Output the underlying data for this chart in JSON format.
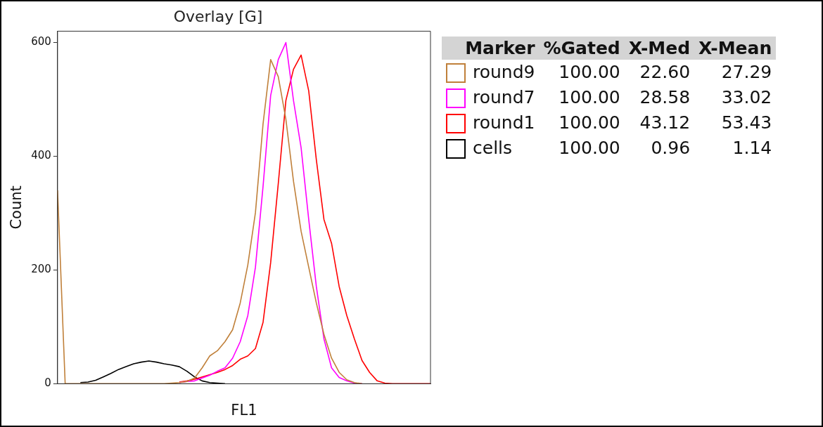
{
  "chart_data": {
    "type": "line",
    "title": "Overlay [G]",
    "xlabel": "FL1",
    "ylabel": "Count",
    "categories": [
      null,
      null,
      null,
      null,
      null,
      null,
      null,
      null,
      null,
      null,
      null,
      null,
      null,
      null,
      null,
      null,
      null,
      null,
      null,
      null,
      null,
      null,
      null,
      null,
      null,
      null,
      null,
      null,
      null,
      null,
      null,
      null,
      null,
      null,
      null,
      null,
      null,
      null,
      null,
      null,
      null,
      null,
      null,
      null,
      null,
      null,
      null,
      null,
      null,
      null
    ],
    "series": [
      {
        "name": "round9",
        "color": "#c0803a",
        "values": [
          340,
          0,
          0,
          0,
          0,
          0,
          0,
          0,
          0,
          0,
          0,
          0,
          0,
          0,
          0,
          1,
          2,
          4,
          10,
          28,
          49,
          58,
          74,
          95,
          142,
          209,
          301,
          457,
          570,
          540,
          465,
          356,
          268,
          205,
          142,
          87,
          45,
          20,
          7,
          2,
          0,
          null,
          null,
          null,
          null,
          null,
          null,
          null,
          null,
          null
        ]
      },
      {
        "name": "round7",
        "color": "#ff00ff",
        "values": [
          null,
          null,
          null,
          null,
          null,
          null,
          null,
          null,
          null,
          null,
          null,
          null,
          null,
          null,
          null,
          null,
          2,
          4,
          5,
          10,
          15,
          22,
          28,
          45,
          74,
          120,
          205,
          347,
          507,
          570,
          600,
          498,
          415,
          289,
          171,
          79,
          28,
          11,
          5,
          1,
          0,
          null,
          null,
          null,
          null,
          null,
          null,
          null,
          null,
          null
        ]
      },
      {
        "name": "round1",
        "color": "#ff0000",
        "values": [
          null,
          null,
          null,
          null,
          null,
          null,
          null,
          null,
          null,
          null,
          null,
          null,
          null,
          null,
          null,
          null,
          3,
          5,
          8,
          12,
          16,
          20,
          25,
          32,
          43,
          49,
          62,
          108,
          213,
          352,
          498,
          553,
          578,
          515,
          394,
          289,
          247,
          171,
          120,
          79,
          41,
          20,
          5,
          1,
          0,
          0,
          0,
          0,
          0,
          0
        ]
      },
      {
        "name": "cells",
        "color": "#000000",
        "values": [
          null,
          null,
          null,
          2,
          3,
          6,
          12,
          18,
          25,
          30,
          35,
          38,
          40,
          38,
          35,
          33,
          30,
          22,
          12,
          5,
          2,
          1,
          0,
          null,
          null,
          null,
          null,
          null,
          null,
          null,
          null,
          null,
          null,
          null,
          null,
          null,
          null,
          null,
          null,
          null,
          null,
          null,
          null,
          null,
          null,
          null,
          null,
          null,
          null,
          null
        ]
      }
    ],
    "ylim": [
      0,
      620
    ],
    "yticks": [
      0,
      200,
      400,
      600
    ],
    "grid": false,
    "legend": "right",
    "marker": "none",
    "line_style": "solid",
    "annotations": [
      "Marker",
      "%Gated",
      "X-Med",
      "X-Mean",
      "100.00",
      "22.60",
      "27.29",
      "100.00",
      "28.58",
      "33.02",
      "100.00",
      "43.12",
      "53.43",
      "100.00",
      "0.96",
      "1.14"
    ]
  }
}
